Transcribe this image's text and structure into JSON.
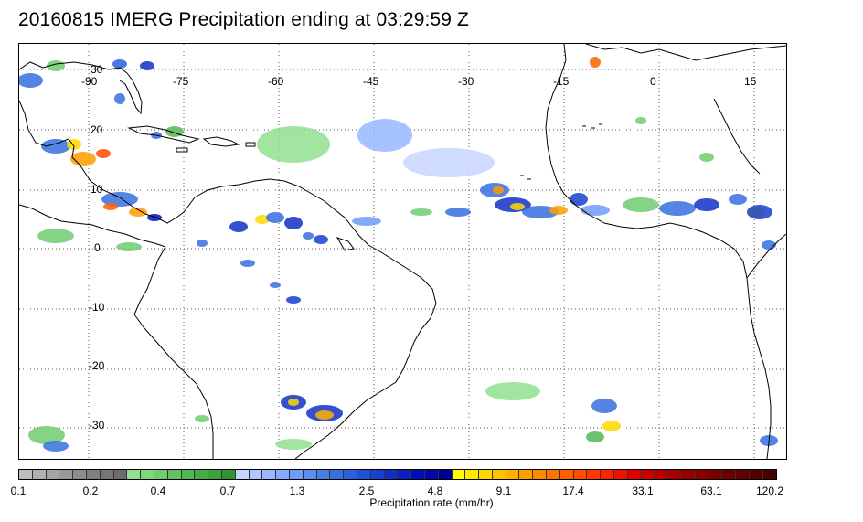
{
  "title": "20160815 IMERG Precipitation ending at 03:29:59 Z",
  "map": {
    "lon_labels": [
      "-90",
      "-75",
      "-60",
      "-45",
      "-30",
      "-15",
      "0",
      "15"
    ],
    "lat_labels": [
      "30",
      "20",
      "10",
      "0",
      "-10",
      "-20",
      "-30"
    ],
    "coastline_color": "#000000",
    "gridline_color": "#555555"
  },
  "colorbar": {
    "colors": [
      "#bdbdbd",
      "#b0b0b0",
      "#a4a4a4",
      "#989898",
      "#8c8c8c",
      "#808080",
      "#767676",
      "#6c6c6c",
      "#90e090",
      "#7fd67f",
      "#70cc70",
      "#62c162",
      "#55b655",
      "#48aa48",
      "#3d9f3d",
      "#339333",
      "#c8d6ff",
      "#b0c8ff",
      "#98b8ff",
      "#82aaff",
      "#6e9cf8",
      "#5a8ef0",
      "#4880e8",
      "#3670e0",
      "#2a5fe0",
      "#2050d8",
      "#1640d0",
      "#1030c8",
      "#0a20c0",
      "#0010b8",
      "#0008a8",
      "#000098",
      "#ffff00",
      "#ffea00",
      "#ffd800",
      "#ffc400",
      "#ffb000",
      "#ff9c00",
      "#ff8800",
      "#ff7400",
      "#ff6000",
      "#ff4c00",
      "#ff3800",
      "#ff2400",
      "#f01000",
      "#e00000",
      "#cc0000",
      "#b80000",
      "#a80000",
      "#980000",
      "#880000",
      "#780000",
      "#6c0000",
      "#600000",
      "#540000",
      "#480000"
    ],
    "tick_labels": [
      "0.1",
      "0.2",
      "0.4",
      "0.7",
      "1.3",
      "2.5",
      "4.8",
      "9.1",
      "17.4",
      "33.1",
      "63.1",
      "120.2"
    ],
    "units_label": "Precipitation rate (mm/hr)"
  }
}
